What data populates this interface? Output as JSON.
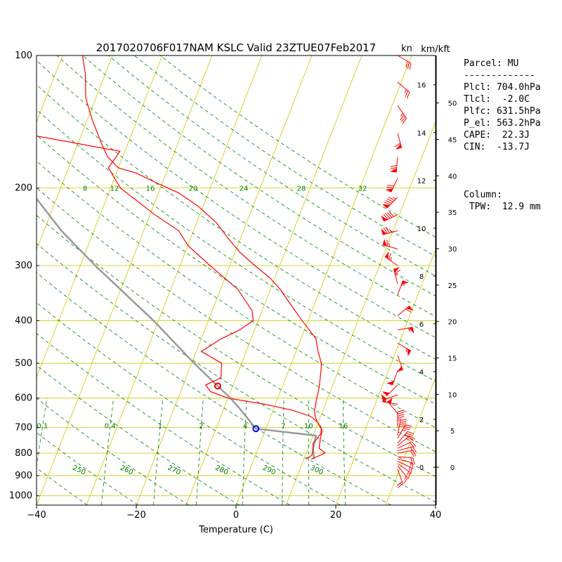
{
  "chart_data": {
    "type": "skew-t",
    "title": "2017020706F017NAM KSLC Valid 23ZTUE07Feb2017",
    "xlabel": "Temperature (C)",
    "ylabel": "",
    "xlim": [
      -40,
      40
    ],
    "ylim_hpa": [
      1050,
      100
    ],
    "x_ticks": [
      "−40",
      "−20",
      "0",
      "20",
      "40"
    ],
    "pressure_ticks": [
      "100",
      "200",
      "300",
      "400",
      "500",
      "600",
      "700",
      "800",
      "900",
      "1000"
    ],
    "pressure_levels": [
      100,
      200,
      300,
      400,
      500,
      600,
      700,
      800,
      900,
      1000
    ],
    "wind_unit_label": "kn",
    "height_unit_label": "km/kft",
    "km_ticks": [
      0,
      2,
      4,
      6,
      8,
      10,
      12,
      14,
      16
    ],
    "kft_ticks": [
      0,
      5,
      10,
      15,
      20,
      25,
      30,
      35,
      40,
      45,
      50
    ],
    "dry_adiabat_labels": [
      "250",
      "260",
      "270",
      "280",
      "290",
      "300"
    ],
    "dry_adiabats_k": [
      250,
      260,
      270,
      280,
      290,
      300
    ],
    "mixing_ratio_labels_700": [
      "0.1",
      "0.4",
      "1",
      "2",
      "4",
      "7",
      "10",
      "16"
    ],
    "mixing_ratio_labels_200": [
      "8",
      "12",
      "16",
      "20",
      "24",
      "28",
      "32"
    ],
    "mixing_ratios_gkg": [
      0.1,
      0.4,
      1,
      2,
      4,
      7,
      10,
      16
    ],
    "temperature_profile": [
      [
        825,
        11.5
      ],
      [
        800,
        13.8
      ],
      [
        780,
        12.2
      ],
      [
        750,
        11.8
      ],
      [
        710,
        11.4
      ],
      [
        680,
        9.8
      ],
      [
        660,
        8.9
      ],
      [
        640,
        8.3
      ],
      [
        620,
        8.1
      ],
      [
        600,
        7.8
      ],
      [
        580,
        7.6
      ],
      [
        560,
        7.3
      ],
      [
        520,
        6.5
      ],
      [
        500,
        6.0
      ],
      [
        470,
        4.4
      ],
      [
        440,
        3.0
      ],
      [
        400,
        -1.2
      ],
      [
        370,
        -4.5
      ],
      [
        340,
        -8.0
      ],
      [
        320,
        -11.0
      ],
      [
        300,
        -15.0
      ],
      [
        280,
        -19.0
      ],
      [
        260,
        -22.5
      ],
      [
        240,
        -26.0
      ],
      [
        220,
        -31.0
      ],
      [
        205,
        -36.0
      ],
      [
        195,
        -41.0
      ],
      [
        185,
        -46.0
      ],
      [
        180,
        -50.0
      ],
      [
        170,
        -53.0
      ],
      [
        160,
        -55.0
      ],
      [
        140,
        -59.0
      ],
      [
        125,
        -62.0
      ],
      [
        110,
        -64.0
      ],
      [
        100,
        -66.0
      ]
    ],
    "dewpoint_profile": [
      [
        825,
        10.3
      ],
      [
        810,
        11.3
      ],
      [
        780,
        11.0
      ],
      [
        760,
        10.6
      ],
      [
        740,
        11.1
      ],
      [
        720,
        11.4
      ],
      [
        700,
        11.0
      ],
      [
        680,
        9.8
      ],
      [
        660,
        8.0
      ],
      [
        640,
        4.0
      ],
      [
        620,
        -2.0
      ],
      [
        600,
        -10.0
      ],
      [
        580,
        -14.0
      ],
      [
        560,
        -15.5
      ],
      [
        540,
        -13.0
      ],
      [
        500,
        -14.0
      ],
      [
        470,
        -19.0
      ],
      [
        440,
        -16.0
      ],
      [
        420,
        -13.0
      ],
      [
        400,
        -11.0
      ],
      [
        380,
        -12.0
      ],
      [
        340,
        -16.5
      ],
      [
        300,
        -24.0
      ],
      [
        270,
        -30.0
      ],
      [
        250,
        -33.0
      ],
      [
        230,
        -39.0
      ],
      [
        200,
        -48.0
      ],
      [
        180,
        -52.0
      ],
      [
        165,
        -51.0
      ],
      [
        140,
        -88.0
      ]
    ],
    "parcel_profile": [
      [
        825,
        12.0
      ],
      [
        780,
        11.0
      ],
      [
        730,
        10.6
      ],
      [
        704,
        -2.0
      ],
      [
        631.5,
        -7.0
      ],
      [
        600,
        -9.5
      ],
      [
        563.2,
        -13.0
      ],
      [
        500,
        -19.5
      ],
      [
        400,
        -31.0
      ],
      [
        300,
        -47.0
      ],
      [
        250,
        -56.5
      ],
      [
        200,
        -66.5
      ],
      [
        150,
        -79.0
      ],
      [
        100,
        -97.0
      ]
    ],
    "lcl": {
      "p": 704,
      "t": -2.0
    },
    "lfc": {
      "p": 631.5,
      "t": -7.0
    },
    "el": {
      "p": 563.2,
      "t": -13.0
    },
    "winds": [
      [
        100,
        120,
        32
      ],
      [
        115,
        130,
        25
      ],
      [
        130,
        145,
        38
      ],
      [
        150,
        165,
        62
      ],
      [
        170,
        185,
        70
      ],
      [
        190,
        205,
        72
      ],
      [
        210,
        225,
        95
      ],
      [
        230,
        245,
        92
      ],
      [
        250,
        255,
        78
      ],
      [
        275,
        285,
        68
      ],
      [
        300,
        305,
        66
      ],
      [
        330,
        345,
        67
      ],
      [
        350,
        380,
        58
      ],
      [
        390,
        410,
        61
      ],
      [
        420,
        440,
        55
      ],
      [
        450,
        480,
        56
      ],
      [
        480,
        520,
        52
      ],
      [
        520,
        560,
        52
      ],
      [
        560,
        585,
        52
      ],
      [
        590,
        610,
        51
      ],
      [
        620,
        640,
        53
      ],
      [
        650,
        680,
        52
      ],
      [
        700,
        720,
        47
      ],
      [
        730,
        730,
        40
      ],
      [
        740,
        750,
        35
      ],
      [
        760,
        760,
        30
      ],
      [
        770,
        770,
        25
      ],
      [
        780,
        785,
        20
      ],
      [
        790,
        795,
        20
      ],
      [
        800,
        800,
        20
      ],
      [
        815,
        815,
        20
      ],
      [
        825,
        825,
        15
      ],
      [
        835,
        835,
        15
      ],
      [
        845,
        845,
        15
      ],
      [
        855,
        860,
        18
      ],
      [
        870,
        880,
        20
      ]
    ],
    "grid": true,
    "legend": "none"
  },
  "parcel_panel": {
    "title": "Parcel: MU",
    "rule": "-------------",
    "lines": [
      "Plcl: 704.0hPa",
      "Tlcl:  -2.0C",
      "Plfc: 631.5hPa",
      "P_el: 563.2hPa",
      "CAPE:  22.3J",
      "CIN:  -13.7J"
    ]
  },
  "column_panel": {
    "title": "Column:",
    "lines": [
      " TPW:  12.9 mm"
    ]
  },
  "colors": {
    "temperature": "#ff0000",
    "dewpoint": "#ff0000",
    "parcel": "#999999",
    "isobar": "#c8c800",
    "isotherm": "#c8c800",
    "dry_adiabat": "#008000",
    "mixing_ratio": "#008000",
    "wind_barb": "#ff0000",
    "lcl_marker": "#ff0000",
    "lfc_marker": "#0000ff"
  }
}
